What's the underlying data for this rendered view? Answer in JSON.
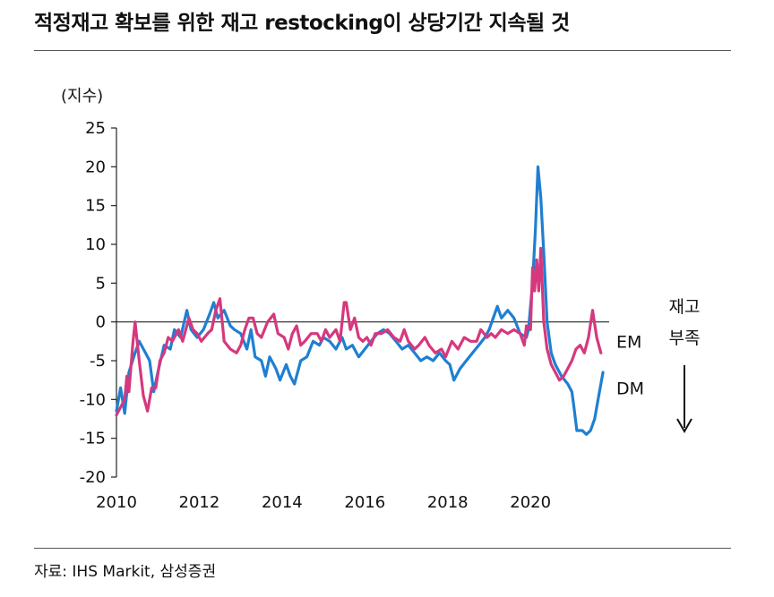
{
  "title": "적정재고 확보를 위한 재고 restocking이 상당기간 지속될 것",
  "source": "자료: IHS Markit, 삼성증권",
  "chart_data": {
    "type": "line",
    "ylabel": "(지수)",
    "ylim": [
      -20,
      25
    ],
    "xlim": [
      2010,
      2021.9
    ],
    "yticks": [
      25,
      20,
      15,
      10,
      5,
      0,
      -5,
      -10,
      -15,
      -20
    ],
    "xticks": [
      2010,
      2012,
      2014,
      2016,
      2018,
      2020
    ],
    "grid": false,
    "annotations": {
      "arrow_top": "재고",
      "arrow_bottom": "부족"
    },
    "series": [
      {
        "name": "DM",
        "color": "#1f7fd1",
        "points": [
          [
            2010.0,
            -11.5
          ],
          [
            2010.1,
            -8.5
          ],
          [
            2010.2,
            -11.8
          ],
          [
            2010.3,
            -6.5
          ],
          [
            2010.45,
            -4.0
          ],
          [
            2010.55,
            -2.5
          ],
          [
            2010.7,
            -4.0
          ],
          [
            2010.8,
            -5.0
          ],
          [
            2010.9,
            -9.0
          ],
          [
            2011.0,
            -6.5
          ],
          [
            2011.15,
            -3.0
          ],
          [
            2011.3,
            -3.5
          ],
          [
            2011.4,
            -1.0
          ],
          [
            2011.55,
            -2.0
          ],
          [
            2011.7,
            1.5
          ],
          [
            2011.8,
            -1.0
          ],
          [
            2011.95,
            -2.0
          ],
          [
            2012.1,
            -1.0
          ],
          [
            2012.25,
            1.0
          ],
          [
            2012.35,
            2.5
          ],
          [
            2012.45,
            0.5
          ],
          [
            2012.6,
            1.5
          ],
          [
            2012.75,
            -0.5
          ],
          [
            2012.85,
            -1.0
          ],
          [
            2013.0,
            -1.5
          ],
          [
            2013.15,
            -3.5
          ],
          [
            2013.25,
            -1.0
          ],
          [
            2013.35,
            -4.5
          ],
          [
            2013.5,
            -5.0
          ],
          [
            2013.6,
            -7.0
          ],
          [
            2013.7,
            -4.5
          ],
          [
            2013.85,
            -6.0
          ],
          [
            2013.95,
            -7.5
          ],
          [
            2014.1,
            -5.5
          ],
          [
            2014.2,
            -7.0
          ],
          [
            2014.3,
            -8.0
          ],
          [
            2014.45,
            -5.0
          ],
          [
            2014.6,
            -4.5
          ],
          [
            2014.75,
            -2.5
          ],
          [
            2014.9,
            -3.0
          ],
          [
            2015.0,
            -2.0
          ],
          [
            2015.15,
            -2.5
          ],
          [
            2015.3,
            -3.5
          ],
          [
            2015.45,
            -2.0
          ],
          [
            2015.55,
            -3.5
          ],
          [
            2015.7,
            -3.0
          ],
          [
            2015.85,
            -4.5
          ],
          [
            2016.0,
            -3.5
          ],
          [
            2016.15,
            -2.5
          ],
          [
            2016.3,
            -1.5
          ],
          [
            2016.45,
            -1.0
          ],
          [
            2016.6,
            -1.5
          ],
          [
            2016.75,
            -2.5
          ],
          [
            2016.9,
            -3.5
          ],
          [
            2017.05,
            -3.0
          ],
          [
            2017.2,
            -4.0
          ],
          [
            2017.35,
            -5.0
          ],
          [
            2017.5,
            -4.5
          ],
          [
            2017.65,
            -5.0
          ],
          [
            2017.8,
            -4.0
          ],
          [
            2017.95,
            -5.0
          ],
          [
            2018.05,
            -5.5
          ],
          [
            2018.15,
            -7.5
          ],
          [
            2018.3,
            -6.0
          ],
          [
            2018.45,
            -5.0
          ],
          [
            2018.6,
            -4.0
          ],
          [
            2018.75,
            -3.0
          ],
          [
            2018.9,
            -2.0
          ],
          [
            2019.0,
            -1.0
          ],
          [
            2019.1,
            0.5
          ],
          [
            2019.2,
            2.0
          ],
          [
            2019.3,
            0.5
          ],
          [
            2019.45,
            1.5
          ],
          [
            2019.6,
            0.5
          ],
          [
            2019.75,
            -1.5
          ],
          [
            2019.9,
            -2.0
          ],
          [
            2019.95,
            -1.0
          ],
          [
            2020.05,
            5.0
          ],
          [
            2020.12,
            12.0
          ],
          [
            2020.18,
            20.0
          ],
          [
            2020.25,
            16.0
          ],
          [
            2020.33,
            8.0
          ],
          [
            2020.4,
            0.0
          ],
          [
            2020.5,
            -4.0
          ],
          [
            2020.6,
            -5.5
          ],
          [
            2020.75,
            -7.0
          ],
          [
            2020.9,
            -8.0
          ],
          [
            2021.0,
            -9.0
          ],
          [
            2021.05,
            -11.0
          ],
          [
            2021.12,
            -14.0
          ],
          [
            2021.25,
            -14.0
          ],
          [
            2021.35,
            -14.5
          ],
          [
            2021.45,
            -14.0
          ],
          [
            2021.55,
            -12.5
          ],
          [
            2021.65,
            -9.5
          ],
          [
            2021.75,
            -6.5
          ]
        ]
      },
      {
        "name": "EM",
        "color": "#d6387e",
        "points": [
          [
            2010.0,
            -12.0
          ],
          [
            2010.1,
            -11.0
          ],
          [
            2010.2,
            -10.0
          ],
          [
            2010.25,
            -7.0
          ],
          [
            2010.3,
            -9.0
          ],
          [
            2010.4,
            -2.5
          ],
          [
            2010.45,
            0.0
          ],
          [
            2010.55,
            -5.0
          ],
          [
            2010.65,
            -9.5
          ],
          [
            2010.75,
            -11.5
          ],
          [
            2010.85,
            -8.5
          ],
          [
            2010.95,
            -8.5
          ],
          [
            2011.05,
            -5.0
          ],
          [
            2011.15,
            -4.0
          ],
          [
            2011.25,
            -2.0
          ],
          [
            2011.35,
            -2.5
          ],
          [
            2011.5,
            -1.0
          ],
          [
            2011.6,
            -2.5
          ],
          [
            2011.75,
            0.5
          ],
          [
            2011.85,
            -1.0
          ],
          [
            2011.95,
            -1.5
          ],
          [
            2012.05,
            -2.5
          ],
          [
            2012.2,
            -1.5
          ],
          [
            2012.3,
            -1.0
          ],
          [
            2012.4,
            1.5
          ],
          [
            2012.5,
            3.0
          ],
          [
            2012.6,
            -2.5
          ],
          [
            2012.75,
            -3.5
          ],
          [
            2012.9,
            -4.0
          ],
          [
            2013.0,
            -3.0
          ],
          [
            2013.1,
            -1.0
          ],
          [
            2013.2,
            0.5
          ],
          [
            2013.3,
            0.5
          ],
          [
            2013.4,
            -1.5
          ],
          [
            2013.5,
            -2.0
          ],
          [
            2013.65,
            0.0
          ],
          [
            2013.8,
            1.0
          ],
          [
            2013.9,
            -1.5
          ],
          [
            2014.05,
            -2.0
          ],
          [
            2014.15,
            -3.5
          ],
          [
            2014.25,
            -1.5
          ],
          [
            2014.35,
            -0.5
          ],
          [
            2014.45,
            -3.0
          ],
          [
            2014.55,
            -2.5
          ],
          [
            2014.7,
            -1.5
          ],
          [
            2014.85,
            -1.5
          ],
          [
            2014.95,
            -2.5
          ],
          [
            2015.05,
            -1.0
          ],
          [
            2015.15,
            -2.0
          ],
          [
            2015.3,
            -1.0
          ],
          [
            2015.4,
            -2.5
          ],
          [
            2015.5,
            2.5
          ],
          [
            2015.55,
            2.5
          ],
          [
            2015.65,
            -1.0
          ],
          [
            2015.75,
            0.5
          ],
          [
            2015.85,
            -2.0
          ],
          [
            2015.95,
            -2.5
          ],
          [
            2016.05,
            -2.0
          ],
          [
            2016.15,
            -3.0
          ],
          [
            2016.25,
            -1.5
          ],
          [
            2016.4,
            -1.5
          ],
          [
            2016.55,
            -1.0
          ],
          [
            2016.7,
            -2.0
          ],
          [
            2016.85,
            -2.5
          ],
          [
            2016.95,
            -1.0
          ],
          [
            2017.05,
            -2.5
          ],
          [
            2017.2,
            -3.5
          ],
          [
            2017.3,
            -3.0
          ],
          [
            2017.45,
            -2.0
          ],
          [
            2017.55,
            -3.0
          ],
          [
            2017.7,
            -4.0
          ],
          [
            2017.85,
            -3.5
          ],
          [
            2017.95,
            -4.5
          ],
          [
            2018.1,
            -2.5
          ],
          [
            2018.25,
            -3.5
          ],
          [
            2018.4,
            -2.0
          ],
          [
            2018.55,
            -2.5
          ],
          [
            2018.7,
            -2.5
          ],
          [
            2018.8,
            -1.0
          ],
          [
            2018.95,
            -2.0
          ],
          [
            2019.05,
            -1.5
          ],
          [
            2019.15,
            -2.0
          ],
          [
            2019.3,
            -1.0
          ],
          [
            2019.45,
            -1.5
          ],
          [
            2019.6,
            -1.0
          ],
          [
            2019.75,
            -1.5
          ],
          [
            2019.85,
            -3.0
          ],
          [
            2019.9,
            -0.5
          ],
          [
            2020.0,
            -1.0
          ],
          [
            2020.05,
            7.0
          ],
          [
            2020.1,
            4.0
          ],
          [
            2020.15,
            8.0
          ],
          [
            2020.2,
            4.0
          ],
          [
            2020.25,
            9.5
          ],
          [
            2020.32,
            0.0
          ],
          [
            2020.4,
            -3.5
          ],
          [
            2020.5,
            -5.5
          ],
          [
            2020.6,
            -6.5
          ],
          [
            2020.7,
            -7.5
          ],
          [
            2020.8,
            -7.0
          ],
          [
            2020.9,
            -6.0
          ],
          [
            2021.0,
            -5.0
          ],
          [
            2021.1,
            -3.5
          ],
          [
            2021.2,
            -3.0
          ],
          [
            2021.3,
            -4.0
          ],
          [
            2021.4,
            -2.0
          ],
          [
            2021.5,
            1.5
          ],
          [
            2021.6,
            -2.0
          ],
          [
            2021.7,
            -4.0
          ]
        ]
      }
    ]
  }
}
